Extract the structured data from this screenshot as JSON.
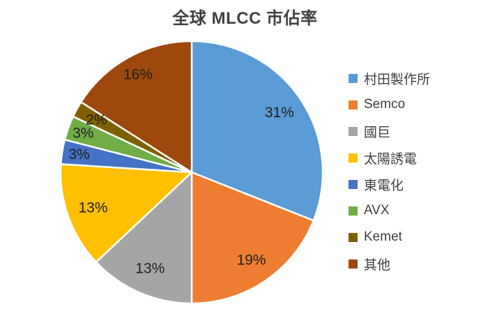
{
  "chart_data": {
    "type": "pie",
    "title": "全球 MLCC 市佔率",
    "start_angle_deg": 0,
    "direction": "clockwise",
    "legend_position": "right",
    "background_color": "#ffffff",
    "title_color": "#404040",
    "label_color": "#1f1f1f",
    "legend_text_color": "#404040",
    "slices": [
      {
        "label": "村田製作所",
        "value": 31,
        "percent_label": "31%",
        "color": "#5B9BD5",
        "label_r": 0.81
      },
      {
        "label": "Semco",
        "value": 19,
        "percent_label": "19%",
        "color": "#ED7D31",
        "label_r": 0.81
      },
      {
        "label": "國巨",
        "value": 13,
        "percent_label": "13%",
        "color": "#A5A5A5",
        "label_r": 0.8
      },
      {
        "label": "太陽誘電",
        "value": 13,
        "percent_label": "13%",
        "color": "#FFC000",
        "label_r": 0.8
      },
      {
        "label": "東電化",
        "value": 3,
        "percent_label": "3%",
        "color": "#4472C4",
        "label_r": 0.87
      },
      {
        "label": "AVX",
        "value": 3,
        "percent_label": "3%",
        "color": "#70AD47",
        "label_r": 0.88
      },
      {
        "label": "Kemet",
        "value": 2,
        "percent_label": "2%",
        "color": "#7F6000",
        "label_r": 0.83
      },
      {
        "label": "其他",
        "value": 16,
        "percent_label": "16%",
        "color": "#9E480E",
        "label_r": 0.85
      }
    ]
  }
}
